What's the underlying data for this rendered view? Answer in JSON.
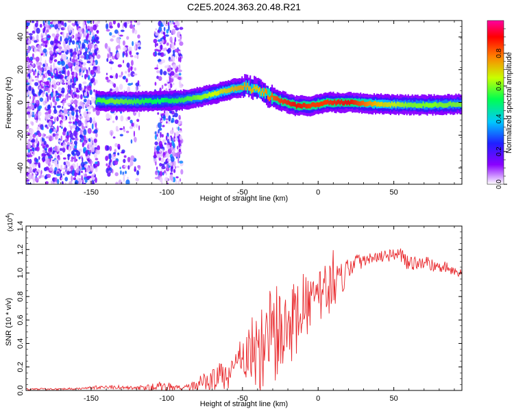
{
  "title": "C2E5.2024.363.20.48.R21",
  "chart_data": [
    {
      "type": "heatmap",
      "xlabel": "Height of straight line (km)",
      "ylabel": "Frequency (Hz)",
      "xlim": [
        -193,
        95
      ],
      "ylim": [
        -50,
        50
      ],
      "x_ticks": [
        -150,
        -100,
        -50,
        0,
        50
      ],
      "x_tick_labels": [
        "-150",
        "-100",
        "-50",
        "0",
        "50"
      ],
      "y_ticks": [
        -40,
        -20,
        0,
        20,
        40
      ],
      "y_tick_labels": [
        "-40",
        "-20",
        "0",
        "20",
        "40"
      ],
      "colorbar": {
        "label": "Normalized spectral amplitude",
        "range": [
          0,
          1
        ],
        "ticks": [
          0.0,
          0.2,
          0.4,
          0.6,
          0.8
        ],
        "tick_labels": [
          "0.0",
          "0.2",
          "0.4",
          "0.6",
          "0.8"
        ],
        "colors": [
          "#ffffff",
          "#8a00ff",
          "#2020ff",
          "#00c8ff",
          "#00ff50",
          "#c8ff00",
          "#ff8000",
          "#ff0000",
          "#ff00a0"
        ]
      },
      "ridge": [
        {
          "x": -145,
          "f": 1.0,
          "a": 0.55
        },
        {
          "x": -135,
          "f": 0.5,
          "a": 0.6
        },
        {
          "x": -120,
          "f": 0.5,
          "a": 0.55
        },
        {
          "x": -105,
          "f": 1.0,
          "a": 0.5
        },
        {
          "x": -90,
          "f": 1.5,
          "a": 0.55
        },
        {
          "x": -80,
          "f": 3.0,
          "a": 0.6
        },
        {
          "x": -70,
          "f": 5.0,
          "a": 0.65
        },
        {
          "x": -60,
          "f": 7.5,
          "a": 0.7
        },
        {
          "x": -50,
          "f": 9.5,
          "a": 0.75
        },
        {
          "x": -40,
          "f": 8.0,
          "a": 0.7
        },
        {
          "x": -32,
          "f": 3.5,
          "a": 0.8
        },
        {
          "x": -25,
          "f": 1.0,
          "a": 0.85
        },
        {
          "x": -15,
          "f": -2.0,
          "a": 0.9
        },
        {
          "x": -5,
          "f": -2.0,
          "a": 0.85
        },
        {
          "x": 5,
          "f": 0.0,
          "a": 0.85
        },
        {
          "x": 20,
          "f": 0.0,
          "a": 0.9
        },
        {
          "x": 40,
          "f": -1.0,
          "a": 0.7
        },
        {
          "x": 60,
          "f": -1.5,
          "a": 0.6
        },
        {
          "x": 80,
          "f": -1.5,
          "a": 0.6
        },
        {
          "x": 95,
          "f": -1.0,
          "a": 0.6
        }
      ]
    },
    {
      "type": "line",
      "xlabel": "Height of straight line (km)",
      "ylabel": "SNR (10 * v/v)",
      "y_scale_label": "(x10",
      "y_scale_exp": "4",
      "xlim": [
        -193,
        95
      ],
      "ylim": [
        0,
        1.4
      ],
      "x_ticks": [
        -150,
        -100,
        -50,
        0,
        50
      ],
      "x_tick_labels": [
        "-150",
        "-100",
        "-50",
        "0",
        "50"
      ],
      "y_ticks": [
        0.0,
        0.2,
        0.4,
        0.6,
        0.8,
        1.0,
        1.2,
        1.4
      ],
      "y_tick_labels": [
        "0.0",
        "0.2",
        "0.4",
        "0.6",
        "0.8",
        "1.0",
        "1.2",
        "1.4"
      ],
      "color": "#e8262a",
      "envelope": [
        {
          "x": -193,
          "base": 0.01,
          "amp": 0.01
        },
        {
          "x": -160,
          "base": 0.015,
          "amp": 0.01
        },
        {
          "x": -140,
          "base": 0.03,
          "amp": 0.02
        },
        {
          "x": -120,
          "base": 0.02,
          "amp": 0.02
        },
        {
          "x": -100,
          "base": 0.03,
          "amp": 0.06
        },
        {
          "x": -90,
          "base": 0.02,
          "amp": 0.02
        },
        {
          "x": -80,
          "base": 0.05,
          "amp": 0.06
        },
        {
          "x": -70,
          "base": 0.1,
          "amp": 0.12
        },
        {
          "x": -60,
          "base": 0.15,
          "amp": 0.15
        },
        {
          "x": -50,
          "base": 0.25,
          "amp": 0.25
        },
        {
          "x": -40,
          "base": 0.35,
          "amp": 0.45
        },
        {
          "x": -30,
          "base": 0.45,
          "amp": 0.55
        },
        {
          "x": -20,
          "base": 0.55,
          "amp": 0.45
        },
        {
          "x": -10,
          "base": 0.7,
          "amp": 0.35
        },
        {
          "x": 0,
          "base": 0.82,
          "amp": 0.3
        },
        {
          "x": 10,
          "base": 0.92,
          "amp": 0.3
        },
        {
          "x": 20,
          "base": 1.05,
          "amp": 0.15
        },
        {
          "x": 30,
          "base": 1.12,
          "amp": 0.08
        },
        {
          "x": 40,
          "base": 1.15,
          "amp": 0.08
        },
        {
          "x": 50,
          "base": 1.18,
          "amp": 0.08
        },
        {
          "x": 60,
          "base": 1.1,
          "amp": 0.08
        },
        {
          "x": 70,
          "base": 1.08,
          "amp": 0.07
        },
        {
          "x": 80,
          "base": 1.06,
          "amp": 0.07
        },
        {
          "x": 95,
          "base": 1.0,
          "amp": 0.08
        }
      ]
    }
  ]
}
